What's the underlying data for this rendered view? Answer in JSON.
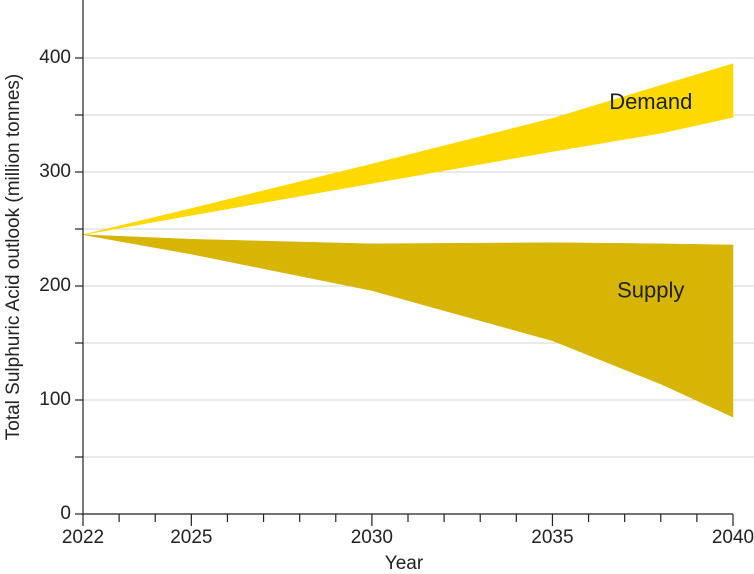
{
  "chart_data": {
    "type": "range_area",
    "x_label": "Year",
    "y_label": "Total Sulphuric Acid outlook (million tonnes)",
    "x": [
      2022,
      2025,
      2030,
      2035,
      2038,
      2040
    ],
    "series": [
      {
        "name": "Demand",
        "color": "#fdd900",
        "low": [
          245,
          262,
          290,
          318,
          334,
          348
        ],
        "high": [
          245,
          268,
          307,
          347,
          376,
          395
        ]
      },
      {
        "name": "Supply",
        "color": "#d6b505",
        "low": [
          245,
          228,
          196,
          152,
          114,
          85
        ],
        "high": [
          245,
          241,
          237,
          238,
          237,
          236
        ]
      }
    ],
    "xlim": [
      2022,
      2040
    ],
    "xticks": [
      2022,
      2025,
      2030,
      2035,
      2040
    ],
    "xminorticks": [
      2023,
      2024,
      2026,
      2027,
      2028,
      2029,
      2031,
      2032,
      2033,
      2034,
      2036,
      2037,
      2038,
      2039
    ],
    "ylim": [
      0,
      450
    ],
    "yticks": [
      0,
      100,
      200,
      300,
      400
    ],
    "yminorticks": [
      50,
      150,
      250,
      350
    ],
    "grid": true
  }
}
